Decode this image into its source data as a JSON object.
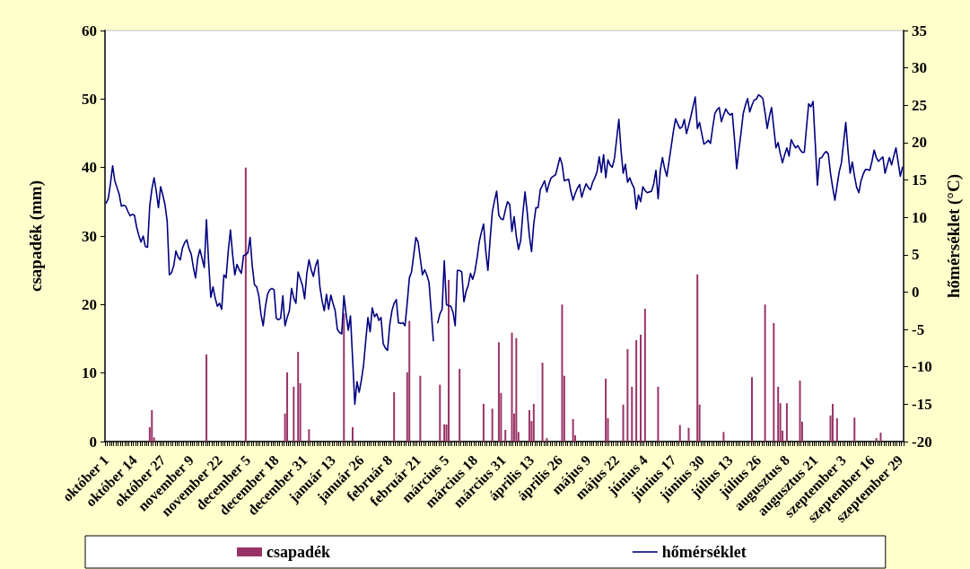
{
  "chart_data": {
    "type": "bar",
    "ylabel": "csapadék (mm)",
    "y2label": "hőmérséklet (°C)",
    "categories": [
      "október 1",
      null,
      null,
      null,
      null,
      null,
      null,
      null,
      null,
      null,
      null,
      null,
      null,
      "október 14",
      null,
      null,
      null,
      null,
      null,
      null,
      null,
      null,
      null,
      null,
      null,
      null,
      "október 27",
      null,
      null,
      null,
      null,
      null,
      null,
      null,
      null,
      null,
      null,
      null,
      null,
      "november 9",
      null,
      null,
      null,
      null,
      null,
      null,
      null,
      null,
      null,
      null,
      null,
      null,
      "november 22",
      null,
      null,
      null,
      null,
      null,
      null,
      null,
      null,
      null,
      null,
      null,
      null,
      "december 5",
      null,
      null,
      null,
      null,
      null,
      null,
      null,
      null,
      null,
      null,
      null,
      null,
      "december 18",
      null,
      null,
      null,
      null,
      null,
      null,
      null,
      null,
      null,
      null,
      null,
      null,
      "december 31",
      null,
      null,
      null,
      null,
      null,
      null,
      null,
      null,
      null,
      null,
      null,
      null,
      "január 13",
      null,
      null,
      null,
      null,
      null,
      null,
      null,
      null,
      null,
      null,
      null,
      null,
      "január 26",
      null,
      null,
      null,
      null,
      null,
      null,
      null,
      null,
      null,
      null,
      null,
      null,
      "február 8",
      null,
      null,
      null,
      null,
      null,
      null,
      null,
      null,
      null,
      null,
      null,
      null,
      "február 21",
      null,
      null,
      null,
      null,
      null,
      null,
      null,
      null,
      null,
      null,
      null,
      null,
      "március 5",
      null,
      null,
      null,
      null,
      null,
      null,
      null,
      null,
      null,
      null,
      null,
      null,
      "március 18",
      null,
      null,
      null,
      null,
      null,
      null,
      null,
      null,
      null,
      null,
      null,
      null,
      "március 31",
      null,
      null,
      null,
      null,
      null,
      null,
      null,
      null,
      null,
      null,
      null,
      null,
      "április 13",
      null,
      null,
      null,
      null,
      null,
      null,
      null,
      null,
      null,
      null,
      null,
      null,
      "április 26",
      null,
      null,
      null,
      null,
      null,
      null,
      null,
      null,
      null,
      null,
      null,
      null,
      "május 9",
      null,
      null,
      null,
      null,
      null,
      null,
      null,
      null,
      null,
      null,
      null,
      null,
      "május 22",
      null,
      null,
      null,
      null,
      null,
      null,
      null,
      null,
      null,
      null,
      null,
      null,
      "június 4",
      null,
      null,
      null,
      null,
      null,
      null,
      null,
      null,
      null,
      null,
      null,
      null,
      "június 17",
      null,
      null,
      null,
      null,
      null,
      null,
      null,
      null,
      null,
      null,
      null,
      null,
      "június 30",
      null,
      null,
      null,
      null,
      null,
      null,
      null,
      null,
      null,
      null,
      null,
      null,
      "július 13",
      null,
      null,
      null,
      null,
      null,
      null,
      null,
      null,
      null,
      null,
      null,
      null,
      "július 26",
      null,
      null,
      null,
      null,
      null,
      null,
      null,
      null,
      null,
      null,
      null,
      null,
      "augusztus 8",
      null,
      null,
      null,
      null,
      null,
      null,
      null,
      null,
      null,
      null,
      null,
      null,
      "augusztus 21",
      null,
      null,
      null,
      null,
      null,
      null,
      null,
      null,
      null,
      null,
      null,
      null,
      "szeptember 3",
      null,
      null,
      null,
      null,
      null,
      null,
      null,
      null,
      null,
      null,
      null,
      null,
      "szeptember 16",
      null,
      null,
      null,
      null,
      null,
      null,
      null,
      null,
      null,
      null,
      null,
      null,
      "szeptember 29",
      null
    ],
    "ylim": [
      0,
      60
    ],
    "yticks": [
      0,
      10,
      20,
      30,
      40,
      50,
      60
    ],
    "y2lim": [
      -20,
      35
    ],
    "y2ticks": [
      -20,
      -15,
      -10,
      -5,
      0,
      5,
      10,
      15,
      20,
      25,
      30,
      35
    ],
    "legend": "bottom",
    "marker": "none",
    "series": [
      {
        "name": "csapadék",
        "color": "#993366",
        "values": [
          null,
          null,
          null,
          null,
          null,
          null,
          null,
          null,
          null,
          null,
          null,
          null,
          null,
          null,
          null,
          null,
          null,
          null,
          null,
          null,
          2.1,
          4.6,
          0.6,
          null,
          null,
          null,
          null,
          null,
          null,
          null,
          null,
          null,
          null,
          null,
          null,
          null,
          null,
          null,
          null,
          null,
          null,
          null,
          null,
          null,
          null,
          null,
          12.7,
          null,
          null,
          null,
          null,
          null,
          null,
          null,
          null,
          null,
          null,
          null,
          null,
          null,
          null,
          null,
          null,
          null,
          40,
          null,
          null,
          null,
          null,
          null,
          null,
          null,
          null,
          null,
          null,
          null,
          null,
          null,
          null,
          null,
          null,
          null,
          4.1,
          10.1,
          null,
          null,
          8.0,
          null,
          13.1,
          8.5,
          null,
          null,
          null,
          1.8,
          null,
          null,
          null,
          null,
          null,
          null,
          null,
          null,
          null,
          null,
          null,
          null,
          null,
          null,
          null,
          18.7,
          null,
          null,
          null,
          2.1,
          null,
          null,
          null,
          null,
          null,
          null,
          null,
          null,
          null,
          null,
          null,
          null,
          null,
          null,
          null,
          null,
          null,
          null,
          7.2,
          null,
          null,
          null,
          null,
          null,
          10.1,
          17.6,
          null,
          null,
          null,
          null,
          9.6,
          null,
          null,
          null,
          null,
          null,
          null,
          null,
          null,
          8.3,
          null,
          2.5,
          2.5,
          23.6,
          null,
          null,
          null,
          null,
          10.6,
          null,
          null,
          null,
          null,
          null,
          null,
          null,
          null,
          null,
          null,
          5.5,
          null,
          null,
          null,
          4.8,
          null,
          null,
          14.5,
          7.1,
          null,
          1.7,
          null,
          null,
          15.9,
          4.1,
          15.1,
          1.4,
          null,
          null,
          null,
          null,
          4.6,
          3.0,
          5.5,
          null,
          null,
          null,
          11.5,
          null,
          0.5,
          null,
          null,
          null,
          null,
          null,
          null,
          20.0,
          9.6,
          null,
          null,
          null,
          3.3,
          0.9,
          null,
          null,
          null,
          null,
          null,
          null,
          null,
          null,
          null,
          null,
          null,
          null,
          null,
          9.2,
          3.4,
          null,
          null,
          null,
          null,
          null,
          null,
          5.4,
          null,
          13.5,
          null,
          8.0,
          null,
          14.8,
          null,
          15.6,
          null,
          19.4,
          null,
          null,
          null,
          null,
          null,
          8.0,
          null,
          null,
          null,
          null,
          null,
          null,
          null,
          null,
          null,
          2.4,
          null,
          null,
          null,
          2.0,
          null,
          null,
          null,
          24.4,
          5.4,
          null,
          null,
          null,
          null,
          null,
          null,
          null,
          null,
          null,
          null,
          1.4,
          null,
          null,
          null,
          null,
          null,
          null,
          null,
          null,
          null,
          null,
          null,
          null,
          9.4,
          null,
          null,
          null,
          null,
          null,
          20.0,
          null,
          null,
          null,
          17.3,
          null,
          8.0,
          5.6,
          1.6,
          null,
          5.6,
          null,
          null,
          null,
          null,
          null,
          8.9,
          2.9,
          null,
          null,
          null,
          null,
          null,
          null,
          null,
          null,
          null,
          null,
          null,
          null,
          3.8,
          5.5,
          null,
          3.4,
          null,
          null,
          null,
          null,
          null,
          null,
          null,
          3.5,
          null,
          null,
          null,
          null,
          null,
          null,
          null,
          null,
          null,
          0.5,
          null,
          1.3,
          null,
          null,
          null,
          null,
          null,
          null,
          null,
          null,
          null,
          null
        ]
      },
      {
        "name": "hőmérséklet",
        "type": "line",
        "axis": "y2",
        "color": "#000080",
        "values": [
          11.9,
          12.5,
          14.5,
          16.9,
          14.9,
          14.0,
          13.1,
          11.5,
          11.6,
          11.5,
          10.8,
          10.2,
          10.4,
          10.3,
          8.7,
          7.6,
          6.7,
          7.5,
          6.1,
          6.0,
          11.5,
          13.8,
          15.3,
          13.5,
          11.3,
          14.1,
          13.0,
          11.7,
          9.5,
          2.3,
          2.6,
          3.5,
          5.5,
          4.7,
          4.3,
          5.9,
          6.6,
          7.0,
          5.8,
          5.1,
          3.3,
          1.9,
          4.5,
          5.7,
          4.5,
          3.3,
          9.7,
          4.0,
          -0.7,
          0.7,
          -0.8,
          -1.9,
          -1.5,
          -2.3,
          2.3,
          1.9,
          5.5,
          8.3,
          5.0,
          2.3,
          3.7,
          3.0,
          2.5,
          4.9,
          5.0,
          5.3,
          7.3,
          3.5,
          1.0,
          0.7,
          -0.5,
          -3.0,
          -4.5,
          -2.0,
          -0.3,
          0.3,
          0.5,
          0.3,
          -3.5,
          -3.7,
          -3.5,
          -0.5,
          -4.5,
          -3.4,
          -2.5,
          0.5,
          -0.8,
          -1.5,
          2.7,
          1.8,
          0.9,
          -0.9,
          2.5,
          4.3,
          3.0,
          2.1,
          3.5,
          4.3,
          0.7,
          -1.2,
          -2.5,
          -0.3,
          -2.3,
          -0.4,
          -1.5,
          -2.5,
          -5.0,
          -5.4,
          -5.6,
          -0.5,
          -3.0,
          -5.1,
          -3.2,
          -9.0,
          -15.0,
          -12.0,
          -13.4,
          -11.8,
          -9.8,
          -6.5,
          -3.4,
          -5.3,
          -2.1,
          -3.3,
          -2.9,
          -3.8,
          -3.4,
          -6.9,
          -7.5,
          -7.8,
          -4.4,
          -2.5,
          -1.5,
          -1.0,
          -4.1,
          -4.2,
          -4.1,
          -4.5,
          -1.5,
          1.9,
          2.7,
          5.0,
          7.3,
          6.7,
          4.5,
          2.3,
          3.0,
          2.3,
          1.3,
          -2.5,
          -6.5,
          null,
          -4.1,
          -2.9,
          -2.3,
          4.2,
          -1.7,
          -1.8,
          -1.9,
          -2.7,
          -4.5,
          2.9,
          2.9,
          2.7,
          -1.3,
          0.1,
          0.9,
          2.5,
          1.7,
          2.7,
          4.5,
          6.7,
          8.0,
          9.1,
          5.5,
          2.9,
          7.0,
          10.7,
          12.2,
          13.5,
          10.3,
          9.8,
          9.7,
          11.0,
          12.1,
          11.7,
          8.1,
          10.1,
          7.5,
          5.7,
          6.9,
          10.5,
          13.4,
          10.7,
          7.5,
          5.4,
          9.1,
          11.3,
          11.3,
          13.7,
          14.3,
          14.9,
          13.4,
          14.5,
          15.3,
          15.5,
          15.7,
          16.8,
          18.0,
          17.1,
          14.9,
          15.0,
          15.1,
          13.5,
          12.3,
          13.2,
          13.9,
          14.4,
          12.7,
          13.7,
          14.5,
          14.0,
          13.7,
          14.7,
          15.3,
          16.1,
          18.1,
          16.0,
          18.4,
          15.3,
          17.7,
          17.0,
          16.7,
          17.9,
          20.5,
          23.1,
          19.0,
          15.9,
          17.1,
          14.7,
          15.3,
          14.5,
          13.9,
          11.1,
          13.0,
          12.1,
          14.1,
          13.6,
          13.3,
          13.4,
          13.5,
          14.5,
          16.3,
          12.5,
          16.3,
          18.0,
          16.5,
          15.5,
          17.5,
          19.5,
          21.5,
          23.2,
          22.5,
          21.9,
          22.1,
          23.1,
          21.2,
          22.3,
          23.5,
          24.8,
          26.1,
          21.9,
          22.7,
          21.2,
          19.8,
          20.0,
          20.3,
          19.9,
          22.0,
          23.9,
          24.4,
          24.7,
          22.8,
          23.7,
          24.5,
          24.0,
          23.7,
          23.9,
          20.5,
          16.5,
          19.0,
          21.3,
          23.9,
          25.0,
          25.9,
          24.1,
          25.0,
          25.7,
          25.8,
          26.4,
          26.2,
          25.9,
          24.0,
          21.9,
          23.5,
          24.7,
          22.0,
          19.3,
          20.0,
          18.5,
          17.3,
          18.4,
          19.3,
          18.2,
          20.4,
          19.8,
          19.3,
          19.6,
          19.1,
          18.7,
          18.7,
          22.0,
          25.2,
          24.8,
          25.5,
          20.0,
          14.3,
          17.9,
          18.0,
          18.5,
          18.8,
          18.5,
          15.9,
          14.0,
          12.3,
          14.2,
          16.1,
          17.3,
          20.0,
          22.7,
          19.0,
          15.9,
          17.4,
          15.5,
          14.0,
          13.3,
          14.9,
          15.8,
          16.4,
          16.4,
          16.3,
          17.5,
          19.0,
          18.0,
          17.5,
          17.8,
          18.1,
          15.9,
          17.0,
          18.0,
          17.0,
          18.2,
          19.3,
          17.4,
          15.5,
          16.7
        ]
      }
    ]
  }
}
